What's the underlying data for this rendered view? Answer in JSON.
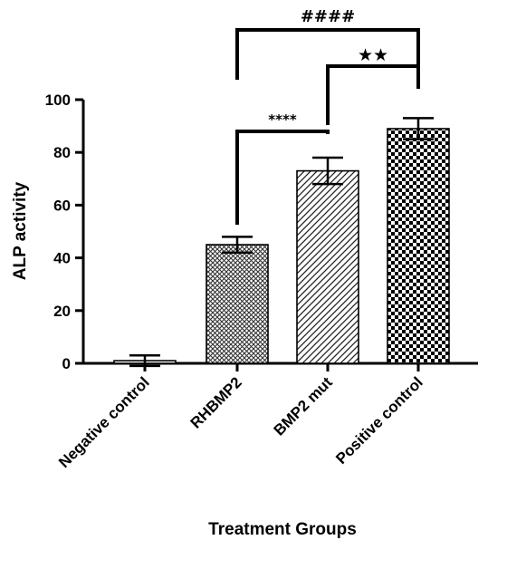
{
  "chart_data": {
    "type": "bar",
    "title": "",
    "xlabel": "Treatment Groups",
    "ylabel": "ALP activity",
    "ylim": [
      0,
      100
    ],
    "yticks": [
      0,
      20,
      40,
      60,
      80,
      100
    ],
    "grid": false,
    "categories": [
      "Negative control",
      "RHBMP2",
      "BMP2 mut",
      "Positive control"
    ],
    "values": [
      1,
      45,
      73,
      89
    ],
    "error_bars": [
      2,
      3,
      5,
      4
    ],
    "patterns": [
      "none",
      "fine-crosshatch",
      "diagonal-stripes",
      "checkerboard"
    ],
    "bar_color": "#000000",
    "significance": [
      {
        "from": "RHBMP2",
        "to": "BMP2 mut",
        "label": "****"
      },
      {
        "from": "BMP2 mut",
        "to": "Positive control",
        "label": "★★"
      },
      {
        "from": "RHBMP2",
        "to": "Positive control",
        "label": "####"
      }
    ]
  }
}
